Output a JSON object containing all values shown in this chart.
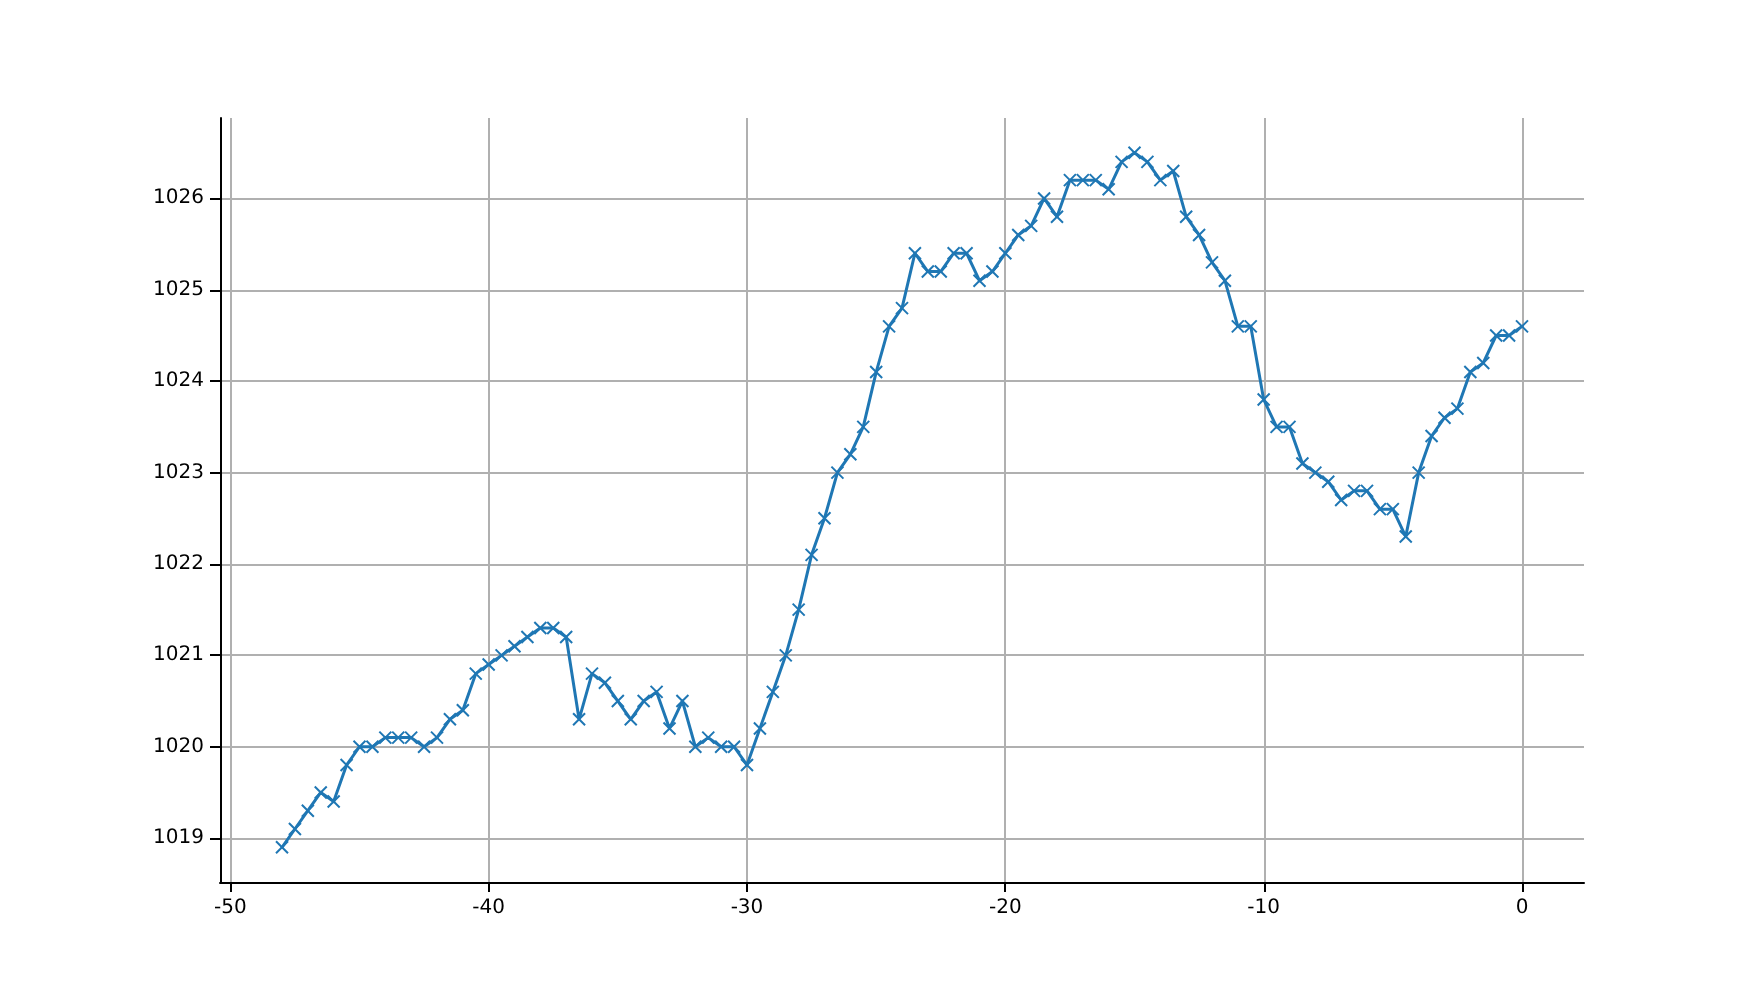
{
  "chart_data": {
    "type": "line",
    "x": [
      -48,
      -47.5,
      -47,
      -46.5,
      -46,
      -45.5,
      -45,
      -44.5,
      -44,
      -43.5,
      -43,
      -42.5,
      -42,
      -41.5,
      -41,
      -40.5,
      -40,
      -39.5,
      -39,
      -38.5,
      -38,
      -37.5,
      -37,
      -36.5,
      -36,
      -35.5,
      -35,
      -34.5,
      -34,
      -33.5,
      -33,
      -32.5,
      -32,
      -31.5,
      -31,
      -30.5,
      -30,
      -29.5,
      -29,
      -28.5,
      -28,
      -27.5,
      -27,
      -26.5,
      -26,
      -25.5,
      -25,
      -24.5,
      -24,
      -23.5,
      -23,
      -22.5,
      -22,
      -21.5,
      -21,
      -20.5,
      -20,
      -19.5,
      -19,
      -18.5,
      -18,
      -17.5,
      -17,
      -16.5,
      -16,
      -15.5,
      -15,
      -14.5,
      -14,
      -13.5,
      -13,
      -12.5,
      -12,
      -11.5,
      -11,
      -10.5,
      -10,
      -9.5,
      -9,
      -8.5,
      -8,
      -7.5,
      -7,
      -6.5,
      -6,
      -5.5,
      -5,
      -4.5,
      -4,
      -3.5,
      -3,
      -2.5,
      -2,
      -1.5,
      -1,
      -0.5,
      0
    ],
    "series": [
      {
        "color": "#1f77b4",
        "values": [
          1018.9,
          1019.1,
          1019.3,
          1019.5,
          1019.4,
          1019.8,
          1020.0,
          1020.0,
          1020.1,
          1020.1,
          1020.1,
          1020.0,
          1020.1,
          1020.3,
          1020.4,
          1020.8,
          1020.9,
          1021.0,
          1021.1,
          1021.2,
          1021.3,
          1021.3,
          1021.2,
          1020.3,
          1020.8,
          1020.7,
          1020.5,
          1020.3,
          1020.5,
          1020.6,
          1020.2,
          1020.5,
          1020.0,
          1020.1,
          1020.0,
          1020.0,
          1019.8,
          1020.2,
          1020.6,
          1021.0,
          1021.5,
          1022.1,
          1022.5,
          1023.0,
          1023.2,
          1023.5,
          1024.1,
          1024.6,
          1024.8,
          1025.4,
          1025.2,
          1025.2,
          1025.4,
          1025.4,
          1025.1,
          1025.2,
          1025.4,
          1025.6,
          1025.7,
          1026.0,
          1025.8,
          1026.2,
          1026.2,
          1026.2,
          1026.1,
          1026.4,
          1026.5,
          1026.4,
          1026.2,
          1026.3,
          1025.8,
          1025.6,
          1025.3,
          1025.1,
          1024.6,
          1024.6,
          1023.8,
          1023.5,
          1023.5,
          1023.1,
          1023.0,
          1022.9,
          1022.7,
          1022.8,
          1022.8,
          1022.6,
          1022.6,
          1022.3,
          1023.0,
          1023.4,
          1023.6,
          1023.7,
          1024.1,
          1024.2,
          1024.5,
          1024.5,
          1024.6
        ]
      }
    ],
    "xlim": [
      -50.4,
      2.4
    ],
    "ylim": [
      1018.52,
      1026.88
    ],
    "xticks": [
      -50,
      -40,
      -30,
      -20,
      -10,
      0
    ],
    "yticks": [
      1019,
      1020,
      1021,
      1022,
      1023,
      1024,
      1025,
      1026
    ],
    "grid": true,
    "marker": "cross",
    "line_style": "solid"
  }
}
